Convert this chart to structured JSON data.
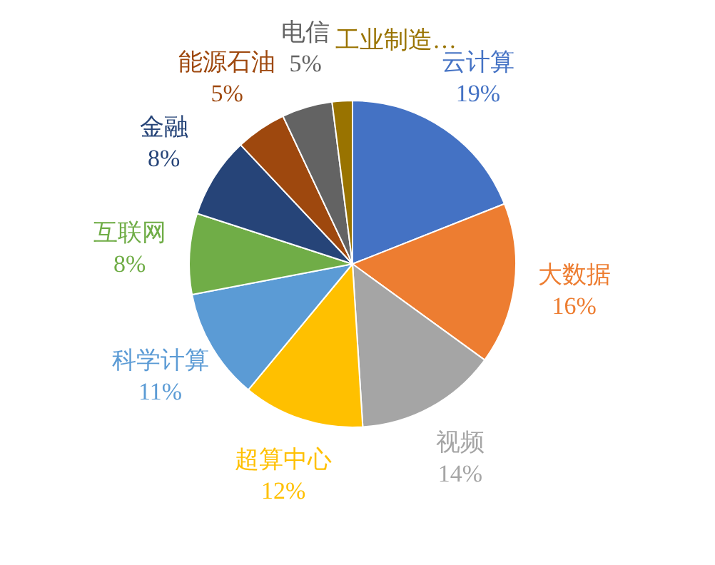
{
  "chart_data": {
    "type": "pie",
    "categories": [
      "云计算",
      "大数据",
      "视频",
      "超算中心",
      "科学计算",
      "互联网",
      "金融",
      "能源石油",
      "电信",
      "工业制造…"
    ],
    "values": [
      19,
      16,
      14,
      12,
      11,
      8,
      8,
      5,
      5,
      2
    ],
    "value_labels": [
      "19%",
      "16%",
      "14%",
      "12%",
      "11%",
      "8%",
      "8%",
      "5%",
      "5%",
      null
    ],
    "colors": [
      "#4472c4",
      "#ed7d31",
      "#a5a5a5",
      "#ffc000",
      "#5b9bd5",
      "#70ad47",
      "#264478",
      "#9e480e",
      "#636363",
      "#997300"
    ]
  }
}
